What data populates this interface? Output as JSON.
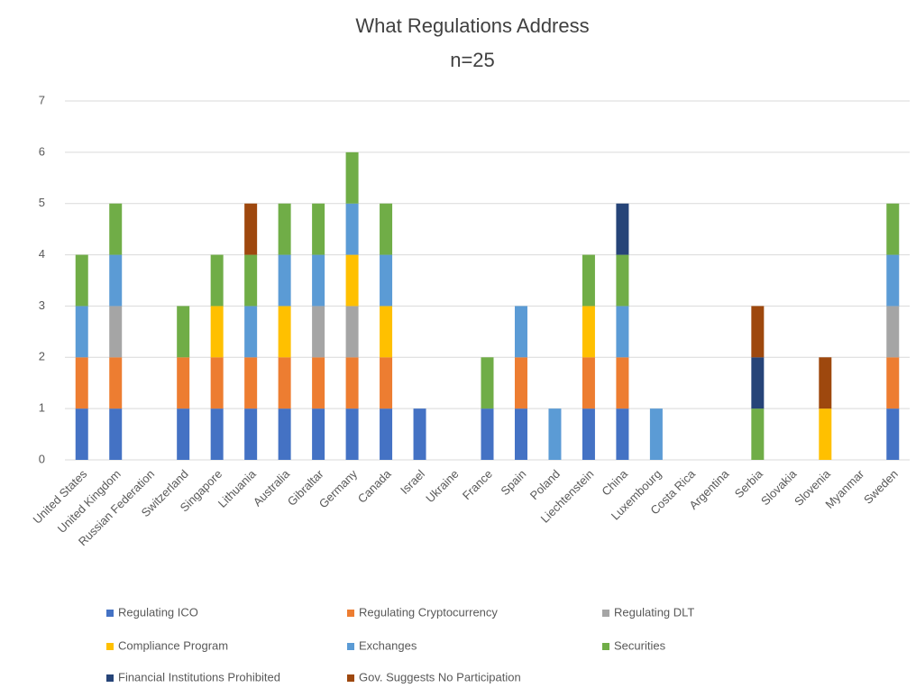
{
  "chart_data": {
    "type": "stacked_bar",
    "title": "What Regulations Address",
    "subtitle": "n=25",
    "categories": [
      "United States",
      "United Kingdom",
      "Russian Federation",
      "Switzerland",
      "Singapore",
      "Lithuania",
      "Australia",
      "Gibraltar",
      "Germany",
      "Canada",
      "Israel",
      "Ukraine",
      "France",
      "Spain",
      "Poland",
      "Liechtenstein",
      "China",
      "Luxembourg",
      "Costa Rica",
      "Argentina",
      "Serbia",
      "Slovakia",
      "Slovenia",
      "Myanmar",
      "Sweden"
    ],
    "series": [
      {
        "name": "Regulating ICO",
        "color": "#4472c4",
        "values": [
          1,
          1,
          0,
          1,
          1,
          1,
          1,
          1,
          1,
          1,
          1,
          0,
          1,
          1,
          0,
          1,
          1,
          0,
          0,
          0,
          0,
          0,
          0,
          0,
          1
        ]
      },
      {
        "name": "Regulating Cryptocurrency",
        "color": "#ed7d31",
        "values": [
          1,
          1,
          0,
          1,
          1,
          1,
          1,
          1,
          1,
          1,
          0,
          0,
          0,
          1,
          0,
          1,
          1,
          0,
          0,
          0,
          0,
          0,
          0,
          0,
          1
        ]
      },
      {
        "name": "Regulating DLT",
        "color": "#a5a5a5",
        "values": [
          0,
          1,
          0,
          0,
          0,
          0,
          0,
          1,
          1,
          0,
          0,
          0,
          0,
          0,
          0,
          0,
          0,
          0,
          0,
          0,
          0,
          0,
          0,
          0,
          1
        ]
      },
      {
        "name": "Compliance Program",
        "color": "#ffc000",
        "values": [
          0,
          0,
          0,
          0,
          1,
          0,
          1,
          0,
          1,
          1,
          0,
          0,
          0,
          0,
          0,
          1,
          0,
          0,
          0,
          0,
          0,
          0,
          1,
          0,
          0
        ]
      },
      {
        "name": "Exchanges",
        "color": "#5b9bd5",
        "values": [
          1,
          1,
          0,
          0,
          0,
          1,
          1,
          1,
          1,
          1,
          0,
          0,
          0,
          1,
          1,
          0,
          1,
          1,
          0,
          0,
          0,
          0,
          0,
          0,
          1
        ]
      },
      {
        "name": "Securities",
        "color": "#70ad47",
        "values": [
          1,
          1,
          0,
          1,
          1,
          1,
          1,
          1,
          1,
          1,
          0,
          0,
          1,
          0,
          0,
          1,
          1,
          0,
          0,
          0,
          1,
          0,
          0,
          0,
          1
        ]
      },
      {
        "name": "Financial Institutions Prohibited",
        "color": "#264478",
        "values": [
          0,
          0,
          0,
          0,
          0,
          0,
          0,
          0,
          0,
          0,
          0,
          0,
          0,
          0,
          0,
          0,
          1,
          0,
          0,
          0,
          1,
          0,
          0,
          0,
          0
        ]
      },
      {
        "name": "Gov. Suggests No Participation",
        "color": "#9e480e",
        "values": [
          0,
          0,
          0,
          0,
          0,
          1,
          0,
          0,
          0,
          0,
          0,
          0,
          0,
          0,
          0,
          0,
          0,
          0,
          0,
          0,
          1,
          0,
          1,
          0,
          0
        ]
      }
    ],
    "ylim": [
      0,
      7
    ],
    "yticks": [
      0,
      1,
      2,
      3,
      4,
      5,
      6,
      7
    ],
    "grid": true,
    "legend": "bottom"
  }
}
